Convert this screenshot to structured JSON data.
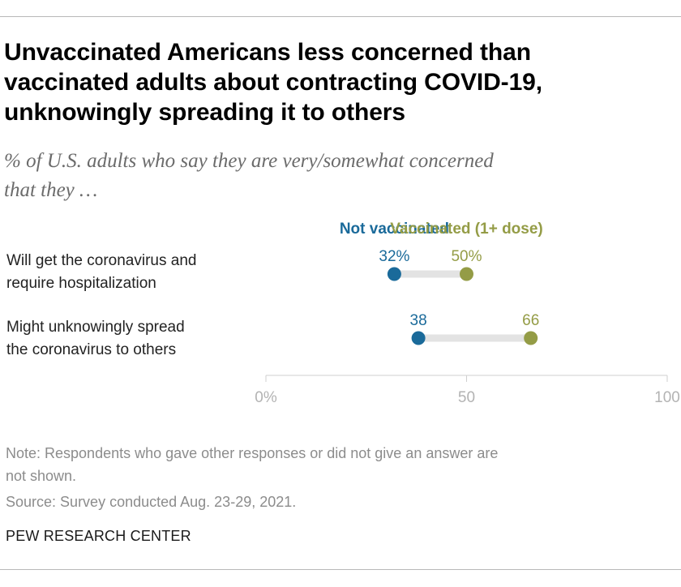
{
  "header": {
    "title_lines": [
      "Unvaccinated Americans less concerned than",
      "vaccinated adults about contracting COVID-19,",
      "unknowingly spreading it to others"
    ],
    "subtitle_lines": [
      "% of U.S. adults who say they are very/somewhat concerned",
      "that they …"
    ]
  },
  "colors": {
    "not_vaccinated": "#1a6a9a",
    "vaccinated": "#949c46",
    "connector": "#e3e3e3",
    "axis": "#cfcfcf",
    "tick_label": "#b3b3b3"
  },
  "chart_data": {
    "type": "dot-plot",
    "axis_range": [
      0,
      100
    ],
    "ticks": [
      {
        "value": 0,
        "label": "0%"
      },
      {
        "value": 50,
        "label": "50"
      },
      {
        "value": 100,
        "label": "100"
      }
    ],
    "series": [
      {
        "name": "Not vaccinated",
        "values": [
          32,
          38
        ],
        "value_labels": [
          "32%",
          "38"
        ]
      },
      {
        "name": "Vaccinated (1+ dose)",
        "values": [
          50,
          66
        ],
        "value_labels": [
          "50%",
          "66"
        ]
      }
    ],
    "categories": [
      {
        "lines": [
          "Will get the coronavirus and",
          "require hospitalization"
        ]
      },
      {
        "lines": [
          "Might unknowingly spread",
          "the coronavirus to others"
        ]
      }
    ]
  },
  "footer": {
    "note_lines": [
      "Note: Respondents who gave other responses or did not give an answer are",
      "not shown."
    ],
    "source": "Survey conducted Aug. 23-29, 2021.",
    "source_prefix": "Source: ",
    "logo": "PEW RESEARCH CENTER"
  }
}
